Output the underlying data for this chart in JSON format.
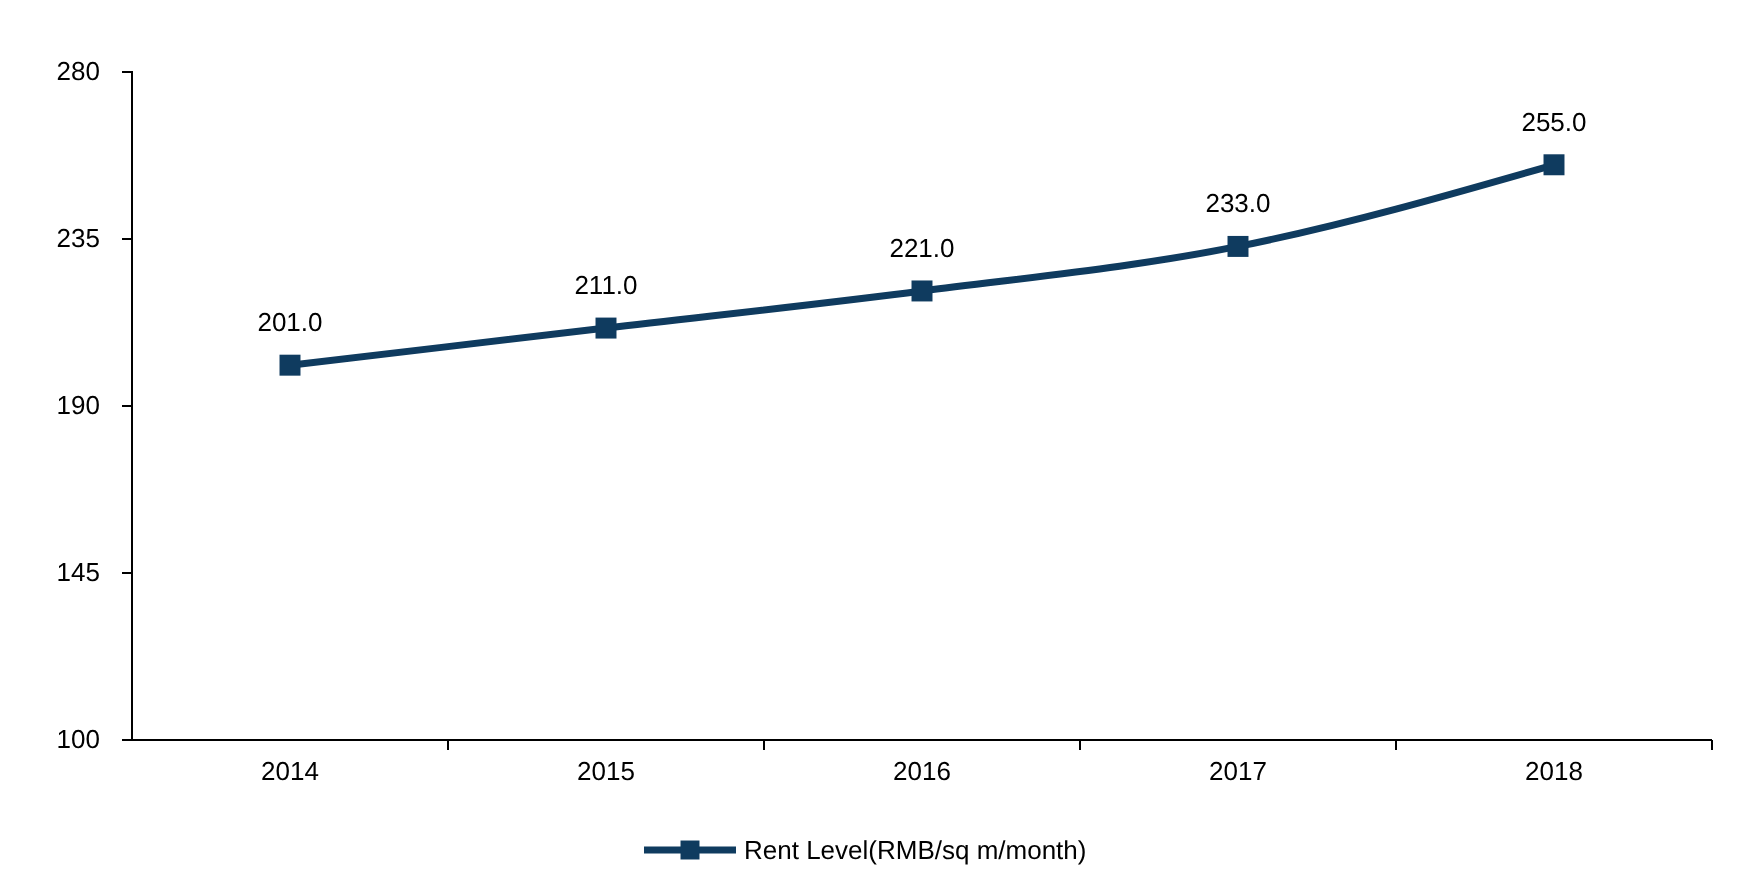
{
  "chart_data": {
    "type": "line",
    "categories": [
      "2014",
      "2015",
      "2016",
      "2017",
      "2018"
    ],
    "series": [
      {
        "name": "Rent Level(RMB/sq m/month)",
        "color": "#0f3b5f",
        "values": [
          201,
          211,
          221,
          233,
          255
        ],
        "value_labels": [
          "201.0",
          "211.0",
          "221.0",
          "233.0",
          "255.0"
        ]
      }
    ],
    "ylim": [
      100,
      280
    ],
    "yticks": [
      100,
      145,
      190,
      235,
      280
    ],
    "grid": false,
    "legend": "bottom",
    "marker": "square",
    "line_style": "solid"
  }
}
